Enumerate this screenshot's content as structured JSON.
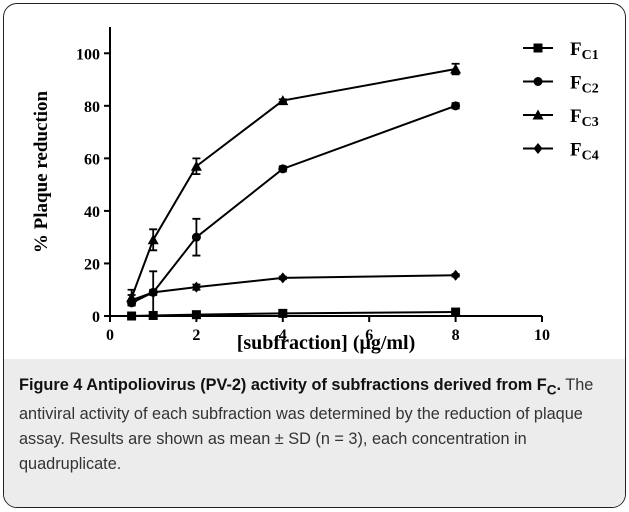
{
  "chart_data": {
    "type": "line",
    "x": [
      0.5,
      1,
      2,
      4,
      8
    ],
    "xlim": [
      0,
      10
    ],
    "xticks": [
      0,
      2,
      4,
      6,
      8,
      10
    ],
    "ylim": [
      0,
      110
    ],
    "yticks": [
      0,
      20,
      40,
      60,
      80,
      100
    ],
    "ylabel": "% Plaque reduction",
    "xlabel": "[subfraction] (μg/ml)",
    "legend": "top-right",
    "series": [
      {
        "name": "FC1",
        "color": "#000000",
        "marker": "square",
        "values": [
          0,
          0.2,
          0.5,
          1,
          1.5
        ],
        "errors": [
          0.3,
          0.3,
          0.3,
          0.3,
          0.5
        ]
      },
      {
        "name": "FC2",
        "color": "#000000",
        "marker": "circle",
        "values": [
          5,
          9,
          30,
          56,
          80
        ],
        "errors": [
          1,
          8,
          7,
          1,
          1
        ]
      },
      {
        "name": "FC3",
        "color": "#000000",
        "marker": "triangle",
        "values": [
          7,
          29,
          57,
          82,
          94
        ],
        "errors": [
          3,
          4,
          3,
          0.5,
          2
        ]
      },
      {
        "name": "FC4",
        "color": "#000000",
        "marker": "diamond",
        "values": [
          6,
          9,
          11,
          14.5,
          15.5
        ],
        "errors": [
          2,
          1,
          1,
          0.5,
          0.5
        ]
      }
    ]
  },
  "caption": {
    "bold_lead": "Figure 4 Antipoliovirus (PV-2) activity of subfractions derived from F",
    "bold_sub": "C",
    "bold_end": ".",
    "text": " The antiviral activity of each subfraction was determined by the reduction of plaque assay. Results are shown as mean ± SD (n = 3), each concentration in quadruplicate."
  }
}
